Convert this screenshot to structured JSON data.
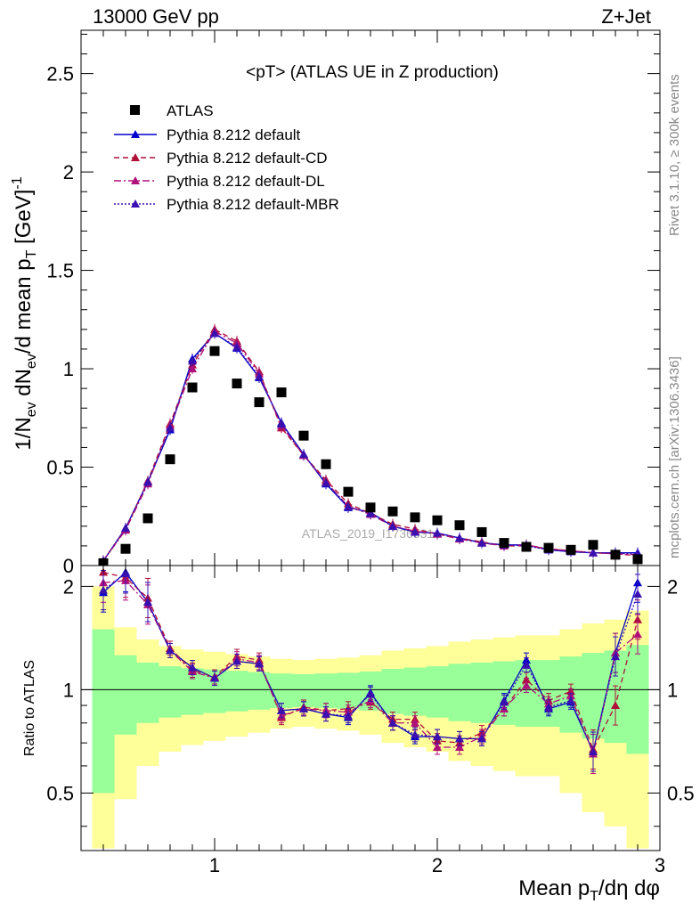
{
  "header": {
    "left": "13000 GeV pp",
    "right": "Z+Jet"
  },
  "side": {
    "rivet": "Rivet 3.1.10, ≥ 300k events",
    "mcplots": "mcplots.cern.ch [arXiv:1306.3436]"
  },
  "chart_data": {
    "type": "scatter",
    "title": "<pT> (ATLAS UE in Z production)",
    "watermark": "ATLAS_2019_I1736531",
    "xlabel": "Mean p_T/dη dφ",
    "ylabel": "1/N_ev dN_ev/d mean p_T [GeV]^-1",
    "ratio_ylabel": "Ratio to ATLAS",
    "xlim": [
      0.4,
      3.0
    ],
    "ylim": [
      0,
      2.72
    ],
    "ratio_ylim": [
      0.34,
      2.3
    ],
    "ratio_log_scale": true,
    "x_ticks": [
      "1",
      "2",
      "3"
    ],
    "y_ticks": [
      "0",
      "0.5",
      "1",
      "1.5",
      "2",
      "2.5"
    ],
    "ratio_y_ticks": [
      "0.5",
      "1",
      "2"
    ],
    "legend_position": "top-left",
    "x": [
      0.5,
      0.6,
      0.7,
      0.8,
      0.9,
      1.0,
      1.1,
      1.2,
      1.3,
      1.4,
      1.5,
      1.6,
      1.7,
      1.8,
      1.9,
      2.0,
      2.1,
      2.2,
      2.3,
      2.4,
      2.5,
      2.6,
      2.7,
      2.8,
      2.9
    ],
    "data": {
      "name": "ATLAS",
      "color": "#000000",
      "values": [
        0.012,
        0.085,
        0.24,
        0.54,
        0.905,
        1.09,
        0.925,
        0.83,
        0.88,
        0.66,
        0.515,
        0.375,
        0.295,
        0.275,
        0.245,
        0.23,
        0.205,
        0.17,
        0.115,
        0.095,
        0.09,
        0.08,
        0.105,
        0.055,
        0.032
      ]
    },
    "band_sigma": [
      0.5,
      0.26,
      0.2,
      0.17,
      0.155,
      0.145,
      0.135,
      0.125,
      0.115,
      0.11,
      0.115,
      0.12,
      0.13,
      0.15,
      0.16,
      0.17,
      0.19,
      0.2,
      0.21,
      0.22,
      0.22,
      0.25,
      0.28,
      0.3,
      0.35
    ],
    "series": [
      {
        "name": "Pythia 8.212 default",
        "color": "#0000cc",
        "dash": "solid",
        "values": [
          0.023,
          0.19,
          0.425,
          0.69,
          1.05,
          1.18,
          1.105,
          0.955,
          0.725,
          0.565,
          0.415,
          0.295,
          0.27,
          0.2,
          0.17,
          0.165,
          0.14,
          0.115,
          0.105,
          0.105,
          0.08,
          0.07,
          0.065,
          0.065,
          0.065
        ],
        "ratio": [
          1.92,
          2.2,
          1.8,
          1.3,
          1.16,
          1.08,
          1.21,
          1.19,
          0.87,
          0.88,
          0.85,
          0.83,
          0.98,
          0.8,
          0.73,
          0.73,
          0.72,
          0.72,
          0.93,
          1.22,
          0.88,
          0.92,
          0.66,
          1.28,
          2.05
        ]
      },
      {
        "name": "Pythia 8.212 default-CD",
        "color": "#b0103a",
        "dash": "6,4",
        "values": [
          0.025,
          0.185,
          0.43,
          0.72,
          1.02,
          1.2,
          1.14,
          0.985,
          0.7,
          0.56,
          0.435,
          0.315,
          0.265,
          0.21,
          0.185,
          0.16,
          0.14,
          0.12,
          0.1,
          0.1,
          0.085,
          0.075,
          0.065,
          0.06,
          0.05
        ],
        "ratio": [
          2.2,
          2.12,
          1.85,
          1.32,
          1.14,
          1.09,
          1.25,
          1.22,
          0.83,
          0.89,
          0.87,
          0.88,
          0.92,
          0.82,
          0.82,
          0.71,
          0.7,
          0.75,
          0.88,
          1.07,
          0.93,
          0.99,
          0.67,
          0.9,
          1.6
        ]
      },
      {
        "name": "Pythia 8.212 default-DL",
        "color": "#b0107a",
        "dash": "8,3,2,3",
        "values": [
          0.025,
          0.18,
          0.415,
          0.71,
          1.0,
          1.19,
          1.13,
          0.975,
          0.71,
          0.56,
          0.425,
          0.3,
          0.26,
          0.2,
          0.175,
          0.16,
          0.135,
          0.115,
          0.1,
          0.105,
          0.085,
          0.075,
          0.065,
          0.06,
          0.055
        ],
        "ratio": [
          2.05,
          2.08,
          1.77,
          1.3,
          1.13,
          1.08,
          1.23,
          1.2,
          0.84,
          0.88,
          0.87,
          0.86,
          0.93,
          0.8,
          0.8,
          0.68,
          0.68,
          0.73,
          0.88,
          1.03,
          0.91,
          0.96,
          0.65,
          1.28,
          1.45
        ]
      },
      {
        "name": "Pythia 8.212 default-MBR",
        "color": "#3a10b0",
        "dash": "2,2",
        "values": [
          0.024,
          0.19,
          0.425,
          0.7,
          1.04,
          1.18,
          1.11,
          0.96,
          0.72,
          0.565,
          0.42,
          0.3,
          0.265,
          0.2,
          0.17,
          0.165,
          0.14,
          0.115,
          0.105,
          0.1,
          0.08,
          0.07,
          0.065,
          0.063,
          0.06
        ],
        "ratio": [
          1.95,
          2.18,
          1.8,
          1.3,
          1.16,
          1.08,
          1.21,
          1.19,
          0.87,
          0.88,
          0.85,
          0.84,
          0.97,
          0.8,
          0.74,
          0.73,
          0.72,
          0.72,
          0.92,
          1.18,
          0.89,
          0.93,
          0.66,
          1.25,
          1.9
        ]
      }
    ]
  }
}
